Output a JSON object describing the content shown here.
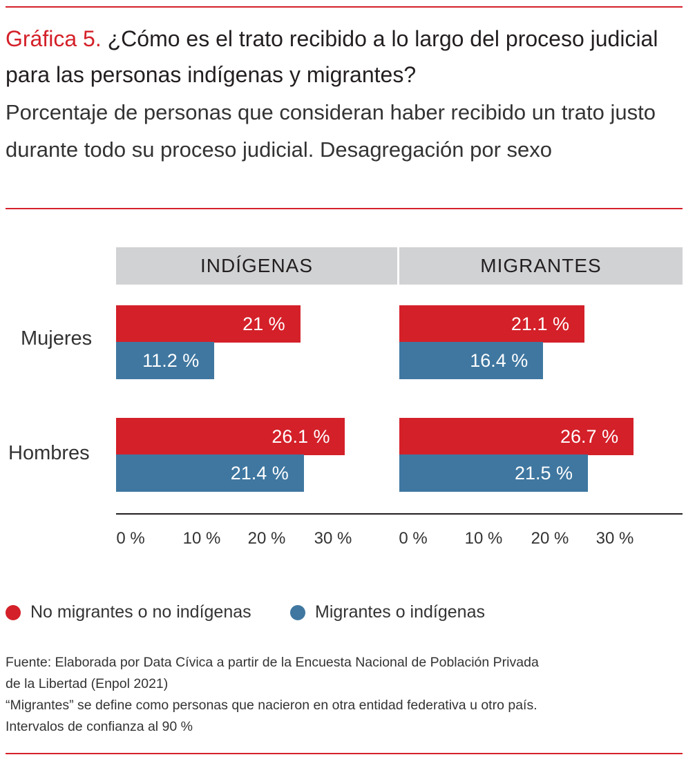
{
  "title": {
    "number": "Gráfica 5.",
    "text": "¿Cómo es el trato recibido a lo largo del proceso judicial para las personas indígenas y migrantes?"
  },
  "subtitle": "Porcentaje de personas que consideran haber recibido un trato justo durante todo su proceso judicial. Desagregación por sexo",
  "colors": {
    "red": "#d42029",
    "blue": "#3f77a0",
    "header": "#d1d2d4"
  },
  "chart_data": {
    "type": "bar",
    "orientation": "horizontal",
    "panels": [
      {
        "title": "INDÍGENAS",
        "categories": [
          "Mujeres",
          "Hombres"
        ],
        "series": [
          {
            "name": "No migrantes o no indígenas",
            "values": [
              21,
              26.1
            ],
            "labels": [
              "21 %",
              "26.1 %"
            ]
          },
          {
            "name": "Migrantes o indígenas",
            "values": [
              11.2,
              21.4
            ],
            "labels": [
              "11.2 %",
              "21.4 %"
            ]
          }
        ],
        "ticks": [
          "0 %",
          "10 %",
          "20 %",
          "30 %"
        ]
      },
      {
        "title": "MIGRANTES",
        "categories": [
          "Mujeres",
          "Hombres"
        ],
        "series": [
          {
            "name": "No migrantes o no indígenas",
            "values": [
              21.1,
              26.7
            ],
            "labels": [
              "21.1 %",
              "26.7 %"
            ]
          },
          {
            "name": "Migrantes o indígenas",
            "values": [
              16.4,
              21.5
            ],
            "labels": [
              "16.4 %",
              "21.5 %"
            ]
          }
        ],
        "ticks": [
          "0 %",
          "10 %",
          "20 %",
          "30 %"
        ]
      }
    ],
    "legend": [
      "No migrantes o no indígenas",
      "Migrantes o indígenas"
    ],
    "legend_position": "bottom-left",
    "xlim": [
      0,
      30
    ]
  },
  "source": [
    "Fuente: Elaborada por Data Cívica a partir de la Encuesta Nacional de Población Privada",
    "de la Libertad (Enpol 2021)",
    "“Migrantes” se define como personas que nacieron en otra entidad federativa u otro país.",
    "Intervalos de confianza al 90 %"
  ]
}
